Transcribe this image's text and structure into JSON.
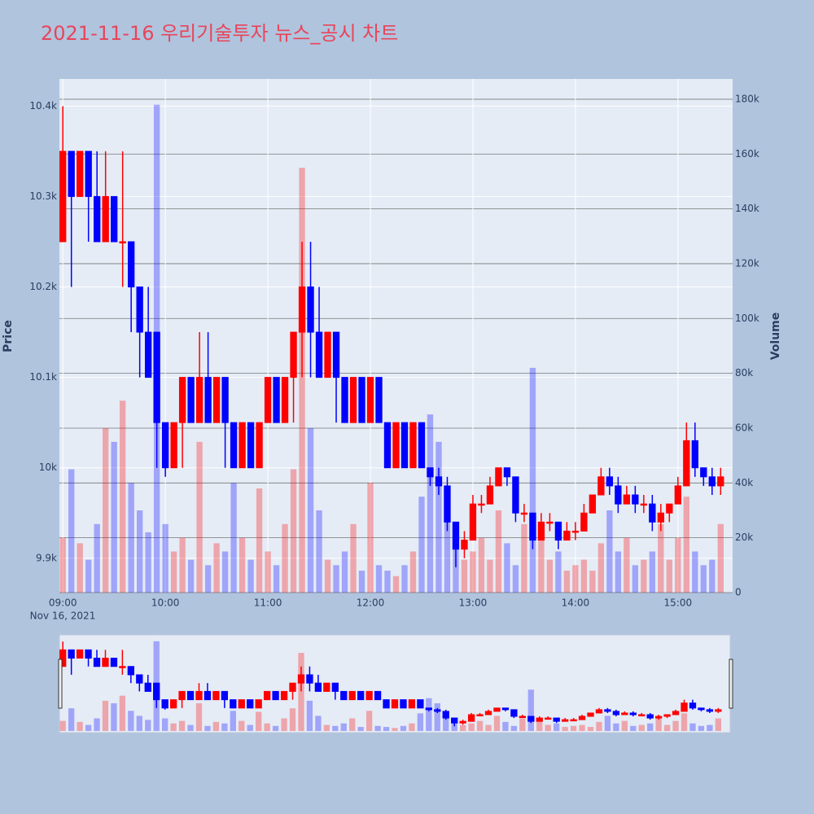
{
  "chart_data": {
    "type": "candlestick",
    "title": "2021-11-16 우리기술투자 뉴스_공시 차트",
    "y_label": "Price",
    "y2_label": "Volume",
    "x_date_label": "Nov 16, 2021",
    "up_color": "#ff0000",
    "down_color": "#0000ff",
    "x": [
      "09:00",
      "09:05",
      "09:10",
      "09:15",
      "09:20",
      "09:25",
      "09:30",
      "09:35",
      "09:40",
      "09:45",
      "09:50",
      "09:55",
      "10:00",
      "10:05",
      "10:10",
      "10:15",
      "10:20",
      "10:25",
      "10:30",
      "10:35",
      "10:40",
      "10:45",
      "10:50",
      "10:55",
      "11:00",
      "11:05",
      "11:10",
      "11:15",
      "11:20",
      "11:25",
      "11:30",
      "11:35",
      "11:40",
      "11:45",
      "11:50",
      "11:55",
      "12:00",
      "12:05",
      "12:10",
      "12:15",
      "12:20",
      "12:25",
      "12:30",
      "12:35",
      "12:40",
      "12:45",
      "12:50",
      "12:55",
      "13:00",
      "13:05",
      "13:10",
      "13:15",
      "13:20",
      "13:25",
      "13:30",
      "13:35",
      "13:40",
      "13:45",
      "13:50",
      "13:55",
      "14:00",
      "14:05",
      "14:10",
      "14:15",
      "14:20",
      "14:25",
      "14:30",
      "14:35",
      "14:40",
      "14:45",
      "14:50",
      "14:55",
      "15:00",
      "15:05",
      "15:10",
      "15:15",
      "15:20",
      "15:25"
    ],
    "open": [
      10250,
      10350,
      10300,
      10350,
      10300,
      10250,
      10300,
      10250,
      10250,
      10200,
      10150,
      10150,
      10050,
      10000,
      10050,
      10100,
      10050,
      10100,
      10050,
      10100,
      10050,
      10000,
      10050,
      10000,
      10050,
      10100,
      10050,
      10100,
      10150,
      10200,
      10150,
      10100,
      10150,
      10100,
      10050,
      10100,
      10050,
      10100,
      10050,
      10000,
      10050,
      10000,
      10050,
      10000,
      9990,
      9980,
      9940,
      9910,
      9920,
      9960,
      9960,
      9980,
      10000,
      9990,
      9950,
      9950,
      9920,
      9940,
      9940,
      9920,
      9930,
      9930,
      9950,
      9970,
      9990,
      9980,
      9960,
      9970,
      9960,
      9960,
      9940,
      9950,
      9960,
      9980,
      10030,
      10000,
      9990,
      9980
    ],
    "high": [
      10400,
      10350,
      10350,
      10350,
      10350,
      10350,
      10300,
      10350,
      10250,
      10200,
      10200,
      10150,
      10050,
      10050,
      10100,
      10100,
      10150,
      10150,
      10100,
      10100,
      10050,
      10050,
      10050,
      10050,
      10100,
      10100,
      10100,
      10150,
      10250,
      10250,
      10200,
      10150,
      10150,
      10100,
      10100,
      10100,
      10100,
      10100,
      10050,
      10050,
      10050,
      10050,
      10050,
      10000,
      10000,
      9990,
      9940,
      9930,
      9970,
      9970,
      9990,
      10000,
      10000,
      9990,
      9960,
      9950,
      9950,
      9950,
      9940,
      9940,
      9940,
      9960,
      9970,
      10000,
      10000,
      9990,
      9980,
      9980,
      9970,
      9970,
      9960,
      9960,
      9990,
      10050,
      10050,
      10000,
      10000,
      10000
    ],
    "low": [
      10250,
      10200,
      10300,
      10250,
      10250,
      10250,
      10250,
      10200,
      10150,
      10100,
      10100,
      10000,
      9990,
      10000,
      10000,
      10050,
      10050,
      10050,
      10050,
      10000,
      10000,
      10000,
      10000,
      10000,
      10050,
      10050,
      10050,
      10050,
      10100,
      10100,
      10100,
      10100,
      10050,
      10050,
      10050,
      10050,
      10050,
      10050,
      10000,
      10000,
      10000,
      10000,
      10000,
      9980,
      9970,
      9930,
      9890,
      9900,
      9920,
      9950,
      9960,
      9980,
      9980,
      9940,
      9940,
      9910,
      9920,
      9930,
      9910,
      9920,
      9920,
      9930,
      9950,
      9970,
      9970,
      9950,
      9960,
      9950,
      9950,
      9930,
      9930,
      9940,
      9960,
      9980,
      9990,
      9980,
      9970,
      9970
    ],
    "close": [
      10350,
      10300,
      10350,
      10300,
      10250,
      10300,
      10250,
      10250,
      10200,
      10150,
      10100,
      10050,
      10000,
      10050,
      10100,
      10050,
      10100,
      10050,
      10100,
      10050,
      10000,
      10050,
      10000,
      10050,
      10100,
      10050,
      10100,
      10150,
      10200,
      10150,
      10100,
      10150,
      10100,
      10050,
      10100,
      10050,
      10100,
      10050,
      10000,
      10050,
      10000,
      10050,
      10000,
      9990,
      9980,
      9940,
      9910,
      9920,
      9960,
      9960,
      9980,
      10000,
      9990,
      9950,
      9950,
      9920,
      9940,
      9940,
      9920,
      9930,
      9930,
      9950,
      9970,
      9990,
      9980,
      9960,
      9970,
      9960,
      9960,
      9940,
      9950,
      9960,
      9980,
      10030,
      10000,
      9990,
      9980,
      9990
    ],
    "volume": [
      20000,
      45000,
      18000,
      12000,
      25000,
      60000,
      55000,
      70000,
      40000,
      30000,
      22000,
      178000,
      25000,
      15000,
      20000,
      12000,
      55000,
      10000,
      18000,
      15000,
      40000,
      20000,
      12000,
      38000,
      15000,
      10000,
      25000,
      45000,
      155000,
      60000,
      30000,
      12000,
      10000,
      15000,
      25000,
      8000,
      40000,
      10000,
      8000,
      6000,
      10000,
      15000,
      35000,
      65000,
      55000,
      30000,
      18000,
      12000,
      15000,
      20000,
      12000,
      30000,
      18000,
      10000,
      25000,
      82000,
      20000,
      12000,
      15000,
      8000,
      10000,
      12000,
      8000,
      18000,
      30000,
      15000,
      20000,
      10000,
      12000,
      15000,
      25000,
      12000,
      20000,
      35000,
      15000,
      10000,
      12000,
      25000
    ],
    "xlim": [
      "08:58",
      "15:32"
    ],
    "xticks": [
      "09:00",
      "10:00",
      "11:00",
      "12:00",
      "13:00",
      "14:00",
      "15:00"
    ],
    "ylim": [
      9862,
      10430
    ],
    "yticks": [
      {
        "value": 9900,
        "label": "9.9k"
      },
      {
        "value": 10000,
        "label": "10k"
      },
      {
        "value": 10100,
        "label": "10.1k"
      },
      {
        "value": 10200,
        "label": "10.2k"
      },
      {
        "value": 10300,
        "label": "10.3k"
      },
      {
        "value": 10400,
        "label": "10.4k"
      }
    ],
    "y2lim": [
      0,
      187400
    ],
    "y2ticks": [
      0,
      {
        "value": 20000,
        "label": "20k"
      },
      {
        "value": 40000,
        "label": "40k"
      },
      {
        "value": 60000,
        "label": "60k"
      },
      {
        "value": 80000,
        "label": "80k"
      },
      {
        "value": 100000,
        "label": "100k"
      },
      {
        "value": 120000,
        "label": "120k"
      },
      {
        "value": 140000,
        "label": "140k"
      },
      {
        "value": 160000,
        "label": "160k"
      },
      {
        "value": 180000,
        "label": "180k"
      }
    ],
    "grid": true
  }
}
